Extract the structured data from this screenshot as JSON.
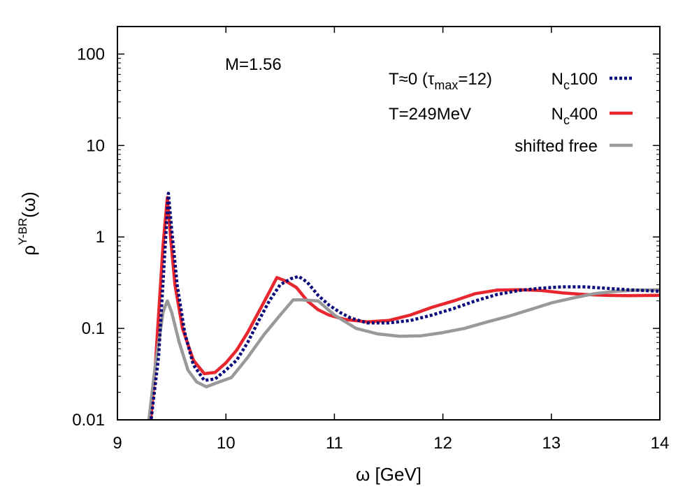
{
  "chart_data": {
    "type": "line",
    "x_label_main": "ω",
    "x_label_unit": "[GeV]",
    "y_label_main": "ρ",
    "y_label_sup": "Υ-BR",
    "y_label_arg": "(ω)",
    "annotation": "M=1.56",
    "y_scale": "log",
    "xlim": [
      9,
      14
    ],
    "ylim": [
      0.01,
      200
    ],
    "x_ticks": [
      9,
      10,
      11,
      12,
      13,
      14
    ],
    "x_tick_labels": [
      "9",
      "10",
      "11",
      "12",
      "13",
      "14"
    ],
    "y_ticks": [
      0.01,
      0.1,
      1,
      10,
      100
    ],
    "y_tick_labels": [
      "0.01",
      "0.1",
      "1",
      "10",
      "100"
    ],
    "legend_placement": "top-right",
    "legend_left_labels": [
      "T≈0 (τ",
      "T=249MeV"
    ],
    "legend_left_sub": "max",
    "legend_left_tail": "=12)",
    "series": [
      {
        "name_main": "N",
        "name_sub": "c",
        "name_tail": "100",
        "color": "#0a0a7a",
        "style": "dotted",
        "points": [
          [
            9.3,
            0.008
          ],
          [
            9.38,
            0.05
          ],
          [
            9.44,
            0.8
          ],
          [
            9.47,
            3.0
          ],
          [
            9.5,
            1.2
          ],
          [
            9.55,
            0.3
          ],
          [
            9.62,
            0.09
          ],
          [
            9.7,
            0.04
          ],
          [
            9.8,
            0.027
          ],
          [
            9.9,
            0.028
          ],
          [
            10.0,
            0.035
          ],
          [
            10.1,
            0.045
          ],
          [
            10.2,
            0.07
          ],
          [
            10.3,
            0.12
          ],
          [
            10.4,
            0.2
          ],
          [
            10.5,
            0.3
          ],
          [
            10.6,
            0.35
          ],
          [
            10.67,
            0.37
          ],
          [
            10.75,
            0.32
          ],
          [
            10.85,
            0.23
          ],
          [
            10.95,
            0.18
          ],
          [
            11.05,
            0.15
          ],
          [
            11.15,
            0.13
          ],
          [
            11.3,
            0.115
          ],
          [
            11.5,
            0.115
          ],
          [
            11.7,
            0.122
          ],
          [
            11.9,
            0.14
          ],
          [
            12.1,
            0.165
          ],
          [
            12.3,
            0.2
          ],
          [
            12.5,
            0.235
          ],
          [
            12.7,
            0.26
          ],
          [
            12.9,
            0.275
          ],
          [
            13.1,
            0.285
          ],
          [
            13.3,
            0.285
          ],
          [
            13.5,
            0.275
          ],
          [
            13.7,
            0.265
          ],
          [
            13.9,
            0.258
          ],
          [
            14.0,
            0.255
          ]
        ]
      },
      {
        "name_main": "N",
        "name_sub": "c",
        "name_tail": "400",
        "color": "#e8262d",
        "style": "solid",
        "points": [
          [
            9.3,
            0.008
          ],
          [
            9.35,
            0.04
          ],
          [
            9.42,
            0.8
          ],
          [
            9.46,
            2.7
          ],
          [
            9.49,
            1.0
          ],
          [
            9.53,
            0.3
          ],
          [
            9.6,
            0.1
          ],
          [
            9.7,
            0.045
          ],
          [
            9.8,
            0.032
          ],
          [
            9.9,
            0.033
          ],
          [
            10.0,
            0.042
          ],
          [
            10.1,
            0.058
          ],
          [
            10.2,
            0.09
          ],
          [
            10.3,
            0.15
          ],
          [
            10.4,
            0.25
          ],
          [
            10.47,
            0.36
          ],
          [
            10.55,
            0.33
          ],
          [
            10.65,
            0.28
          ],
          [
            10.75,
            0.2
          ],
          [
            10.85,
            0.16
          ],
          [
            10.95,
            0.14
          ],
          [
            11.1,
            0.125
          ],
          [
            11.3,
            0.118
          ],
          [
            11.5,
            0.122
          ],
          [
            11.7,
            0.14
          ],
          [
            11.9,
            0.17
          ],
          [
            12.1,
            0.2
          ],
          [
            12.3,
            0.24
          ],
          [
            12.5,
            0.262
          ],
          [
            12.7,
            0.265
          ],
          [
            12.9,
            0.26
          ],
          [
            13.1,
            0.245
          ],
          [
            13.3,
            0.235
          ],
          [
            13.5,
            0.23
          ],
          [
            13.7,
            0.228
          ],
          [
            14.0,
            0.23
          ]
        ]
      },
      {
        "name_main": "shifted free",
        "name_sub": "",
        "name_tail": "",
        "color": "#999999",
        "style": "solid",
        "points": [
          [
            9.28,
            0.008
          ],
          [
            9.35,
            0.04
          ],
          [
            9.42,
            0.15
          ],
          [
            9.46,
            0.2
          ],
          [
            9.5,
            0.15
          ],
          [
            9.57,
            0.07
          ],
          [
            9.65,
            0.035
          ],
          [
            9.73,
            0.026
          ],
          [
            9.82,
            0.023
          ],
          [
            9.9,
            0.025
          ],
          [
            10.05,
            0.029
          ],
          [
            10.2,
            0.048
          ],
          [
            10.35,
            0.085
          ],
          [
            10.5,
            0.14
          ],
          [
            10.62,
            0.205
          ],
          [
            10.7,
            0.205
          ],
          [
            10.85,
            0.2
          ],
          [
            11.0,
            0.14
          ],
          [
            11.2,
            0.1
          ],
          [
            11.4,
            0.087
          ],
          [
            11.6,
            0.082
          ],
          [
            11.8,
            0.083
          ],
          [
            12.0,
            0.09
          ],
          [
            12.2,
            0.1
          ],
          [
            12.4,
            0.117
          ],
          [
            12.6,
            0.135
          ],
          [
            12.8,
            0.16
          ],
          [
            13.0,
            0.19
          ],
          [
            13.2,
            0.215
          ],
          [
            13.4,
            0.24
          ],
          [
            13.6,
            0.255
          ],
          [
            13.8,
            0.262
          ],
          [
            14.0,
            0.265
          ]
        ]
      }
    ]
  }
}
